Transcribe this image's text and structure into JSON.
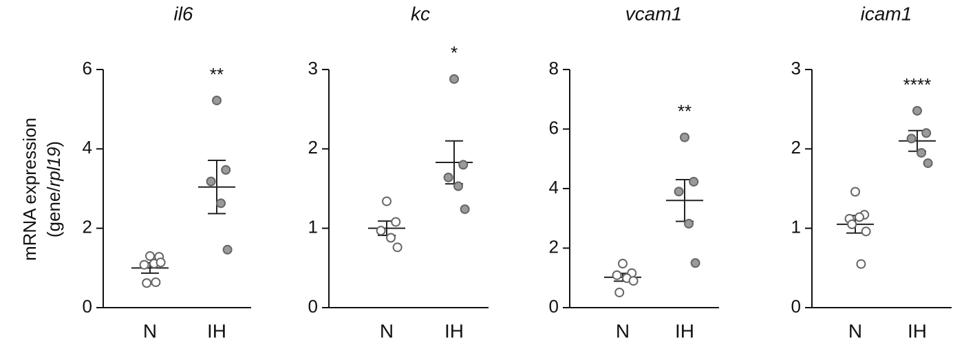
{
  "chart_data": [
    {
      "type": "dot",
      "title": "il6",
      "ylabel": [
        "mRNA expression",
        "(gene/",
        "rpl19",
        ")"
      ],
      "categories": [
        "N",
        "IH"
      ],
      "colors": [
        "#ffffff",
        "#9a9a9a"
      ],
      "groups": [
        {
          "values": [
            1.3,
            1.28,
            1.08,
            1.11,
            1.14,
            0.62,
            0.64
          ],
          "mean": 1.0,
          "sem": 0.13
        },
        {
          "values": [
            5.22,
            3.47,
            3.18,
            2.63,
            1.46
          ],
          "mean": 3.04,
          "sem": 0.67,
          "annotation": "**"
        }
      ],
      "ylim": [
        0,
        6
      ],
      "yticks": [
        0,
        2,
        4,
        6
      ]
    },
    {
      "type": "dot",
      "title": "kc",
      "categories": [
        "N",
        "IH"
      ],
      "colors": [
        "#ffffff",
        "#9a9a9a"
      ],
      "groups": [
        {
          "values": [
            1.34,
            1.08,
            0.97,
            0.88,
            0.76
          ],
          "mean": 1.0,
          "sem": 0.09
        },
        {
          "values": [
            2.88,
            1.8,
            1.64,
            1.53,
            1.24
          ],
          "mean": 1.83,
          "sem": 0.27,
          "annotation": "*"
        }
      ],
      "ylim": [
        0,
        3
      ],
      "yticks": [
        0,
        1,
        2,
        3
      ]
    },
    {
      "type": "dot",
      "title": "vcam1",
      "categories": [
        "N",
        "IH"
      ],
      "colors": [
        "#ffffff",
        "#9a9a9a"
      ],
      "groups": [
        {
          "values": [
            1.48,
            1.16,
            1.09,
            0.99,
            0.9,
            0.51
          ],
          "mean": 1.02,
          "sem": 0.13
        },
        {
          "values": [
            5.72,
            4.23,
            3.9,
            2.82,
            1.5
          ],
          "mean": 3.6,
          "sem": 0.7,
          "annotation": "**"
        }
      ],
      "ylim": [
        0,
        8
      ],
      "yticks": [
        0,
        2,
        4,
        6,
        8
      ]
    },
    {
      "type": "dot",
      "title": "icam1",
      "categories": [
        "N",
        "IH"
      ],
      "colors": [
        "#ffffff",
        "#9a9a9a"
      ],
      "groups": [
        {
          "values": [
            1.46,
            1.17,
            1.12,
            1.14,
            0.96,
            1.05,
            0.55
          ],
          "mean": 1.05,
          "sem": 0.11
        },
        {
          "values": [
            2.48,
            2.2,
            2.13,
            1.95,
            1.82
          ],
          "mean": 2.1,
          "sem": 0.13,
          "annotation": "****"
        }
      ],
      "ylim": [
        0,
        3
      ],
      "yticks": [
        0,
        1,
        2,
        3
      ]
    }
  ]
}
